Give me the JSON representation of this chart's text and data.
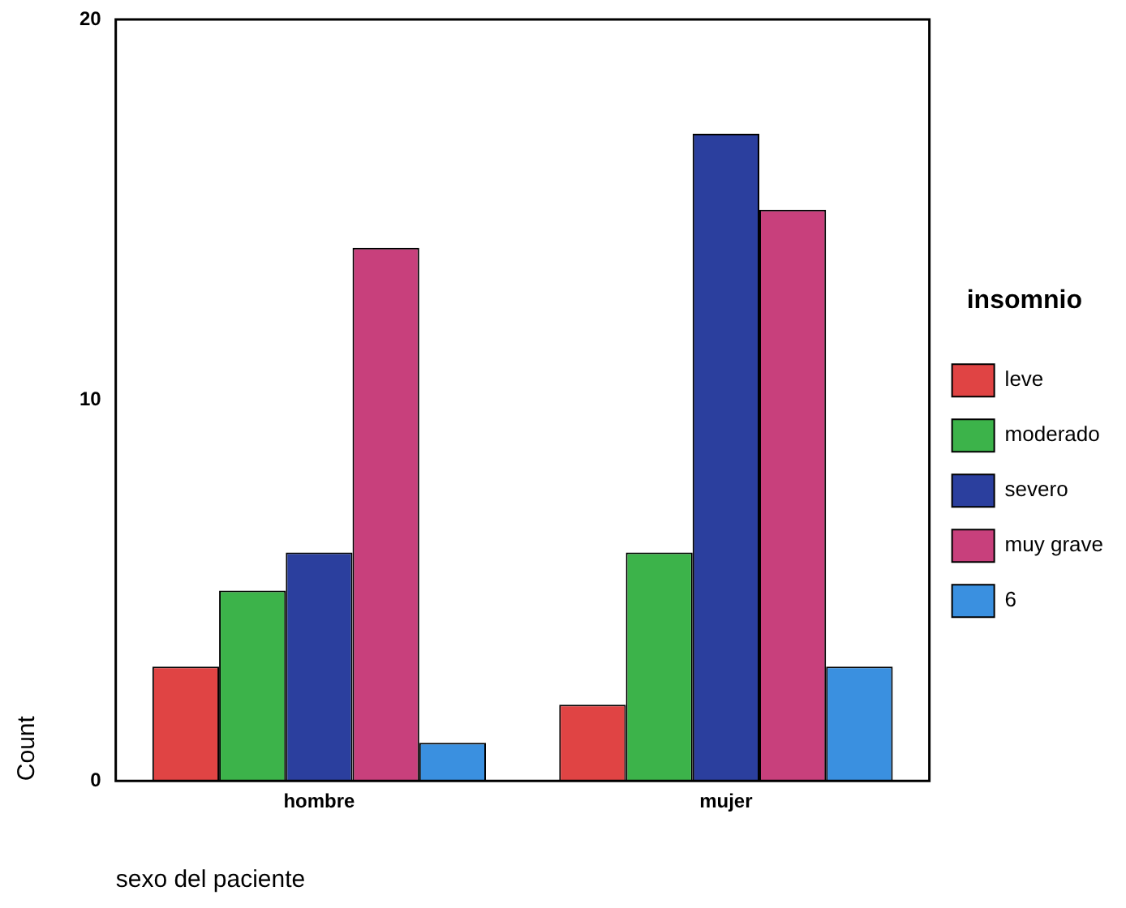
{
  "chart_data": {
    "type": "bar",
    "xlabel": "sexo del paciente",
    "ylabel": "Count",
    "legend_title": "insomnio",
    "categories": [
      "hombre",
      "mujer"
    ],
    "series": [
      {
        "name": "leve",
        "color": "#e04444",
        "values": [
          3,
          2
        ]
      },
      {
        "name": "moderado",
        "color": "#3cb34a",
        "values": [
          5,
          6
        ]
      },
      {
        "name": "severo",
        "color": "#2b3f9e",
        "values": [
          6,
          17
        ]
      },
      {
        "name": "muy grave",
        "color": "#c8407c",
        "values": [
          14,
          15
        ]
      },
      {
        "name": "6",
        "color": "#3a90e0",
        "values": [
          1,
          3
        ]
      }
    ],
    "ylim": [
      0,
      20
    ],
    "yticks": [
      0,
      10,
      20
    ],
    "grid": false,
    "legend": "right"
  }
}
